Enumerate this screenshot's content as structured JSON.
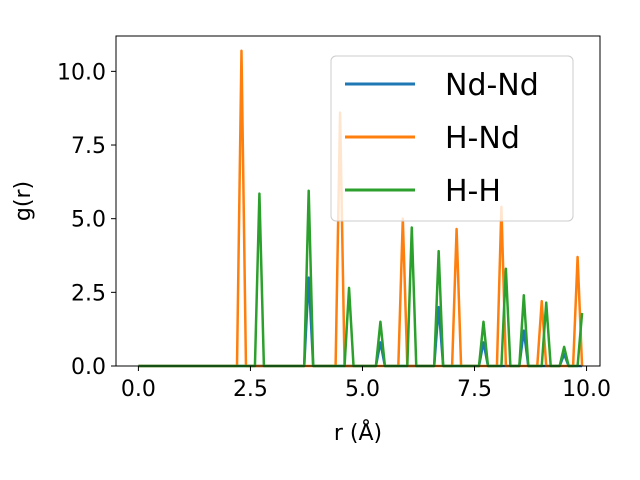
{
  "chart_data": {
    "type": "line",
    "title": "",
    "xlabel": "r (Å)",
    "ylabel": "g(r)",
    "xlim": [
      -0.5,
      10.3
    ],
    "ylim": [
      0,
      11.2
    ],
    "x_ticks": [
      0.0,
      2.5,
      5.0,
      7.5,
      10.0
    ],
    "x_tick_labels": [
      "0.0",
      "2.5",
      "5.0",
      "7.5",
      "10.0"
    ],
    "y_ticks": [
      0.0,
      2.5,
      5.0,
      7.5,
      10.0
    ],
    "y_tick_labels": [
      "0.0",
      "2.5",
      "5.0",
      "7.5",
      "10.0"
    ],
    "grid": false,
    "legend_position": "top-right",
    "series": [
      {
        "name": "Nd-Nd",
        "color": "#1f77b4",
        "peaks": [
          [
            3.8,
            3.0
          ],
          [
            5.4,
            0.8
          ],
          [
            6.7,
            2.0
          ],
          [
            7.7,
            0.8
          ],
          [
            8.6,
            1.2
          ],
          [
            9.5,
            0.4
          ]
        ]
      },
      {
        "name": "H-Nd",
        "color": "#ff7f0e",
        "peaks": [
          [
            2.3,
            10.7
          ],
          [
            4.5,
            8.6
          ],
          [
            5.9,
            5.0
          ],
          [
            7.1,
            4.65
          ],
          [
            8.1,
            5.4
          ],
          [
            9.0,
            2.2
          ],
          [
            9.8,
            3.7
          ]
        ]
      },
      {
        "name": "H-H",
        "color": "#2ca02c",
        "peaks": [
          [
            2.7,
            5.85
          ],
          [
            3.8,
            5.95
          ],
          [
            4.7,
            2.65
          ],
          [
            5.4,
            1.5
          ],
          [
            6.1,
            4.7
          ],
          [
            6.7,
            3.9
          ],
          [
            7.7,
            1.5
          ],
          [
            8.2,
            3.3
          ],
          [
            8.6,
            2.4
          ],
          [
            9.1,
            2.15
          ],
          [
            9.5,
            0.65
          ],
          [
            9.9,
            1.8
          ]
        ]
      }
    ]
  }
}
